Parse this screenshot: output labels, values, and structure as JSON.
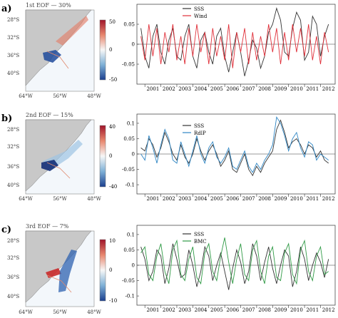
{
  "panels": [
    {
      "letter": "a)",
      "eof_title": "1st EOF — 30%",
      "colorbar": {
        "ticks": [
          "50",
          "0",
          "-50"
        ],
        "unit": ""
      },
      "map": {
        "lat_labels": [
          "28°S",
          "32°S",
          "36°S",
          "40°S"
        ],
        "lon_labels": [
          "64°W",
          "56°W",
          "48°W"
        ]
      },
      "series_names": [
        "SSS",
        "Wind"
      ],
      "series_colors": [
        "#333333",
        "#e0303a"
      ],
      "y_ticks": [
        "0.05",
        "0",
        "-0.05"
      ],
      "x_ticks": [
        "2001",
        "2002",
        "2003",
        "2004",
        "2005",
        "2006",
        "2007",
        "2008",
        "2009",
        "2010",
        "2011",
        "2012"
      ]
    },
    {
      "letter": "b)",
      "eof_title": "2nd EOF — 15%",
      "colorbar": {
        "ticks": [
          "40",
          "0",
          "-40"
        ],
        "unit": ""
      },
      "map": {
        "lat_labels": [
          "28°S",
          "32°S",
          "36°S",
          "40°S"
        ],
        "lon_labels": [
          "64°W",
          "56°W",
          "48°W"
        ]
      },
      "series_names": [
        "SSS",
        "RdlP"
      ],
      "series_colors": [
        "#333333",
        "#2f86c4"
      ],
      "y_ticks": [
        "0.1",
        "0.05",
        "0",
        "-0.05",
        "-0.1"
      ],
      "x_ticks": [
        "2001",
        "2002",
        "2003",
        "2004",
        "2005",
        "2006",
        "2007",
        "2008",
        "2009",
        "2010",
        "2011",
        "2012"
      ]
    },
    {
      "letter": "c)",
      "eof_title": "3rd EOF — 7%",
      "colorbar": {
        "ticks": [
          "10",
          "0",
          "-10"
        ],
        "unit": ""
      },
      "map": {
        "lat_labels": [
          "28°S",
          "32°S",
          "36°S",
          "40°S"
        ],
        "lon_labels": [
          "64°W",
          "56°W",
          "48°W"
        ]
      },
      "series_names": [
        "SSS",
        "BMC"
      ],
      "series_colors": [
        "#333333",
        "#2f9a45"
      ],
      "y_ticks": [
        "0.1",
        "0.05",
        "0",
        "-0.05",
        "-0.1"
      ],
      "x_ticks": [
        "2001",
        "2002",
        "2003",
        "2004",
        "2005",
        "2006",
        "2007",
        "2008",
        "2009",
        "2010",
        "2011",
        "2012"
      ]
    }
  ],
  "chart_data": [
    {
      "type": "line",
      "x": [
        "2000-10",
        "2001-01",
        "2001-04",
        "2001-07",
        "2001-10",
        "2002-01",
        "2002-04",
        "2002-07",
        "2002-10",
        "2003-01",
        "2003-04",
        "2003-07",
        "2003-10",
        "2004-01",
        "2004-04",
        "2004-07",
        "2004-10",
        "2005-01",
        "2005-04",
        "2005-07",
        "2005-10",
        "2006-01",
        "2006-04",
        "2006-07",
        "2006-10",
        "2007-01",
        "2007-04",
        "2007-07",
        "2007-10",
        "2008-01",
        "2008-04",
        "2008-07",
        "2008-10",
        "2009-01",
        "2009-04",
        "2009-07",
        "2009-10",
        "2010-01",
        "2010-04",
        "2010-07",
        "2010-10",
        "2011-01",
        "2011-04",
        "2011-07",
        "2011-10",
        "2012-01",
        "2012-04",
        "2012-07"
      ],
      "series": [
        {
          "name": "SSS",
          "values": [
            0.04,
            -0.03,
            -0.06,
            0.02,
            0.05,
            -0.02,
            -0.05,
            0.01,
            0.04,
            -0.03,
            -0.04,
            0.02,
            0.05,
            -0.03,
            -0.06,
            0.01,
            0.03,
            -0.02,
            -0.05,
            0.02,
            0.04,
            -0.03,
            -0.07,
            -0.02,
            0.03,
            -0.02,
            -0.08,
            -0.04,
            0.01,
            -0.01,
            -0.06,
            -0.03,
            0.03,
            0.05,
            0.09,
            0.06,
            -0.02,
            -0.03,
            0.04,
            0.08,
            0.06,
            -0.04,
            -0.02,
            0.07,
            0.05,
            -0.03,
            0.02,
            0.05
          ]
        },
        {
          "name": "Wind",
          "values": [
            0.02,
            -0.04,
            0.05,
            -0.03,
            0.04,
            -0.05,
            0.03,
            -0.02,
            0.05,
            -0.04,
            0.02,
            -0.05,
            0.04,
            -0.03,
            0.05,
            -0.02,
            0.03,
            -0.05,
            0.04,
            -0.03,
            0.02,
            -0.04,
            0.05,
            -0.06,
            0.03,
            -0.02,
            0.04,
            -0.05,
            0.03,
            -0.04,
            0.02,
            -0.03,
            0.05,
            -0.02,
            0.04,
            -0.05,
            0.03,
            -0.04,
            0.05,
            -0.02,
            0.04,
            -0.03,
            0.05,
            -0.04,
            0.02,
            -0.05,
            0.03,
            -0.02
          ]
        }
      ],
      "xlabel": "",
      "ylabel": "",
      "xlim": [
        "2000-07",
        "2012-12"
      ],
      "ylim": [
        -0.1,
        0.1
      ],
      "grid": false,
      "legend": "top"
    },
    {
      "type": "line",
      "x": [
        "2000-10",
        "2001-01",
        "2001-04",
        "2001-07",
        "2001-10",
        "2002-01",
        "2002-04",
        "2002-07",
        "2002-10",
        "2003-01",
        "2003-04",
        "2003-07",
        "2003-10",
        "2004-01",
        "2004-04",
        "2004-07",
        "2004-10",
        "2005-01",
        "2005-04",
        "2005-07",
        "2005-10",
        "2006-01",
        "2006-04",
        "2006-07",
        "2006-10",
        "2007-01",
        "2007-04",
        "2007-07",
        "2007-10",
        "2008-01",
        "2008-04",
        "2008-07",
        "2008-10",
        "2009-01",
        "2009-04",
        "2009-07",
        "2009-10",
        "2010-01",
        "2010-04",
        "2010-07",
        "2010-10",
        "2011-01",
        "2011-04",
        "2011-07",
        "2011-10",
        "2012-01",
        "2012-04",
        "2012-07"
      ],
      "series": [
        {
          "name": "SSS",
          "values": [
            0.02,
            0.01,
            0.05,
            0.03,
            -0.01,
            0.02,
            0.07,
            0.04,
            0.0,
            -0.02,
            0.03,
            -0.01,
            -0.03,
            0.0,
            0.05,
            0.01,
            -0.02,
            0.01,
            0.03,
            0.0,
            -0.04,
            -0.02,
            0.01,
            -0.05,
            -0.06,
            -0.03,
            0.0,
            -0.05,
            -0.07,
            -0.04,
            -0.06,
            -0.03,
            -0.01,
            0.01,
            0.08,
            0.11,
            0.07,
            0.02,
            0.04,
            0.05,
            0.03,
            0.0,
            0.03,
            0.02,
            -0.01,
            0.01,
            -0.02,
            -0.03
          ]
        },
        {
          "name": "RdlP",
          "values": [
            0.0,
            -0.02,
            0.06,
            0.02,
            -0.03,
            0.03,
            0.08,
            0.05,
            -0.02,
            -0.03,
            0.04,
            0.0,
            -0.04,
            0.01,
            0.06,
            0.0,
            -0.03,
            0.02,
            0.04,
            -0.01,
            -0.03,
            -0.01,
            0.02,
            -0.04,
            -0.05,
            -0.02,
            0.01,
            -0.04,
            -0.06,
            -0.03,
            -0.05,
            -0.02,
            0.0,
            0.03,
            0.12,
            0.1,
            0.06,
            0.01,
            0.05,
            0.07,
            0.02,
            -0.01,
            0.04,
            0.03,
            -0.02,
            0.0,
            -0.01,
            -0.02
          ]
        }
      ],
      "xlabel": "",
      "ylabel": "",
      "xlim": [
        "2000-07",
        "2012-12"
      ],
      "ylim": [
        -0.13,
        0.13
      ],
      "grid": false,
      "legend": "top"
    },
    {
      "type": "line",
      "x": [
        "2000-10",
        "2001-01",
        "2001-04",
        "2001-07",
        "2001-10",
        "2002-01",
        "2002-04",
        "2002-07",
        "2002-10",
        "2003-01",
        "2003-04",
        "2003-07",
        "2003-10",
        "2004-01",
        "2004-04",
        "2004-07",
        "2004-10",
        "2005-01",
        "2005-04",
        "2005-07",
        "2005-10",
        "2006-01",
        "2006-04",
        "2006-07",
        "2006-10",
        "2007-01",
        "2007-04",
        "2007-07",
        "2007-10",
        "2008-01",
        "2008-04",
        "2008-07",
        "2008-10",
        "2009-01",
        "2009-04",
        "2009-07",
        "2009-10",
        "2010-01",
        "2010-04",
        "2010-07",
        "2010-10",
        "2011-01",
        "2011-04",
        "2011-07",
        "2011-10",
        "2012-01",
        "2012-04",
        "2012-07"
      ],
      "series": [
        {
          "name": "SSS",
          "values": [
            0.06,
            0.02,
            -0.05,
            -0.02,
            0.05,
            0.03,
            -0.06,
            -0.01,
            0.07,
            0.02,
            -0.04,
            -0.03,
            0.05,
            0.0,
            -0.07,
            -0.02,
            0.06,
            0.03,
            -0.05,
            0.0,
            0.04,
            -0.02,
            -0.08,
            -0.01,
            0.05,
            0.01,
            -0.06,
            -0.02,
            0.07,
            0.03,
            -0.05,
            0.01,
            0.06,
            -0.01,
            -0.06,
            0.0,
            0.05,
            0.03,
            -0.07,
            -0.02,
            0.06,
            0.02,
            -0.05,
            0.0,
            0.04,
            0.01,
            -0.04,
            0.02
          ]
        },
        {
          "name": "BMC",
          "values": [
            0.04,
            0.06,
            -0.03,
            -0.05,
            0.03,
            0.07,
            -0.02,
            -0.06,
            0.05,
            0.08,
            -0.03,
            -0.05,
            0.02,
            0.06,
            -0.04,
            -0.06,
            0.04,
            0.07,
            -0.02,
            -0.05,
            0.03,
            0.09,
            0.01,
            -0.06,
            0.02,
            0.07,
            -0.03,
            -0.05,
            0.05,
            0.08,
            -0.02,
            -0.06,
            0.03,
            0.06,
            -0.04,
            -0.05,
            0.04,
            0.07,
            -0.03,
            -0.06,
            0.05,
            0.08,
            -0.02,
            -0.05,
            0.03,
            0.06,
            -0.03,
            -0.02
          ]
        }
      ],
      "xlabel": "",
      "ylabel": "",
      "xlim": [
        "2000-07",
        "2012-12"
      ],
      "ylim": [
        -0.13,
        0.13
      ],
      "grid": false,
      "legend": "top"
    }
  ]
}
